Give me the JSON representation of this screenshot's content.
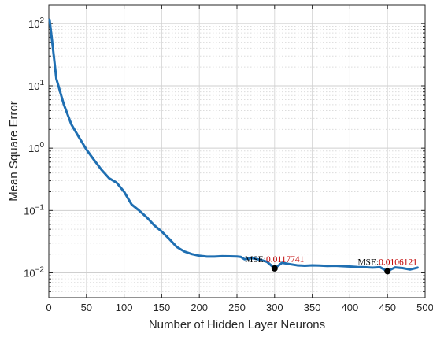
{
  "chart_data": {
    "type": "line",
    "xlabel": "Number of Hidden Layer Neurons",
    "ylabel": "Mean Square Error",
    "x_scale": "linear",
    "y_scale": "log",
    "xlim": [
      0,
      500
    ],
    "ylim": [
      0.004,
      200
    ],
    "x_ticks": [
      0,
      50,
      100,
      150,
      200,
      250,
      300,
      350,
      400,
      450,
      500
    ],
    "y_ticks": [
      0.01,
      0.1,
      1,
      10,
      100
    ],
    "y_tick_labels": [
      {
        "base": "10",
        "exp": "−2"
      },
      {
        "base": "10",
        "exp": "−1"
      },
      {
        "base": "10",
        "exp": "0"
      },
      {
        "base": "10",
        "exp": "1"
      },
      {
        "base": "10",
        "exp": "2"
      }
    ],
    "grid": true,
    "minor_grid": true,
    "line_color": "#1f6fb2",
    "series": [
      {
        "points": [
          [
            1,
            115
          ],
          [
            5,
            45
          ],
          [
            10,
            13
          ],
          [
            20,
            5
          ],
          [
            30,
            2.4
          ],
          [
            40,
            1.5
          ],
          [
            50,
            0.95
          ],
          [
            60,
            0.65
          ],
          [
            70,
            0.45
          ],
          [
            80,
            0.33
          ],
          [
            90,
            0.28
          ],
          [
            100,
            0.2
          ],
          [
            110,
            0.125
          ],
          [
            120,
            0.1
          ],
          [
            130,
            0.078
          ],
          [
            140,
            0.058
          ],
          [
            150,
            0.046
          ],
          [
            160,
            0.035
          ],
          [
            170,
            0.026
          ],
          [
            180,
            0.022
          ],
          [
            190,
            0.02
          ],
          [
            200,
            0.0188
          ],
          [
            210,
            0.0182
          ],
          [
            220,
            0.0182
          ],
          [
            230,
            0.0185
          ],
          [
            240,
            0.0184
          ],
          [
            250,
            0.0183
          ],
          [
            255,
            0.018
          ],
          [
            260,
            0.0165
          ],
          [
            270,
            0.0172
          ],
          [
            280,
            0.0163
          ],
          [
            290,
            0.015
          ],
          [
            300,
            0.0117741
          ],
          [
            310,
            0.0145
          ],
          [
            320,
            0.0138
          ],
          [
            330,
            0.0132
          ],
          [
            340,
            0.013
          ],
          [
            350,
            0.0132
          ],
          [
            360,
            0.0131
          ],
          [
            370,
            0.0129
          ],
          [
            380,
            0.013
          ],
          [
            390,
            0.0128
          ],
          [
            400,
            0.0126
          ],
          [
            410,
            0.0124
          ],
          [
            420,
            0.0123
          ],
          [
            430,
            0.0121
          ],
          [
            440,
            0.0123
          ],
          [
            450,
            0.0106121
          ],
          [
            460,
            0.0122
          ],
          [
            470,
            0.0119
          ],
          [
            480,
            0.0113
          ],
          [
            490,
            0.0121
          ]
        ]
      }
    ],
    "annotations": [
      {
        "x": 300,
        "y": 0.0117741,
        "prefix": "MSE:",
        "value": "0.0117741",
        "prefix_color": "#000000",
        "value_color": "#c00000"
      },
      {
        "x": 450,
        "y": 0.0106121,
        "prefix": "MSE:",
        "value": "0.0106121",
        "prefix_color": "#000000",
        "value_color": "#c00000"
      }
    ]
  }
}
